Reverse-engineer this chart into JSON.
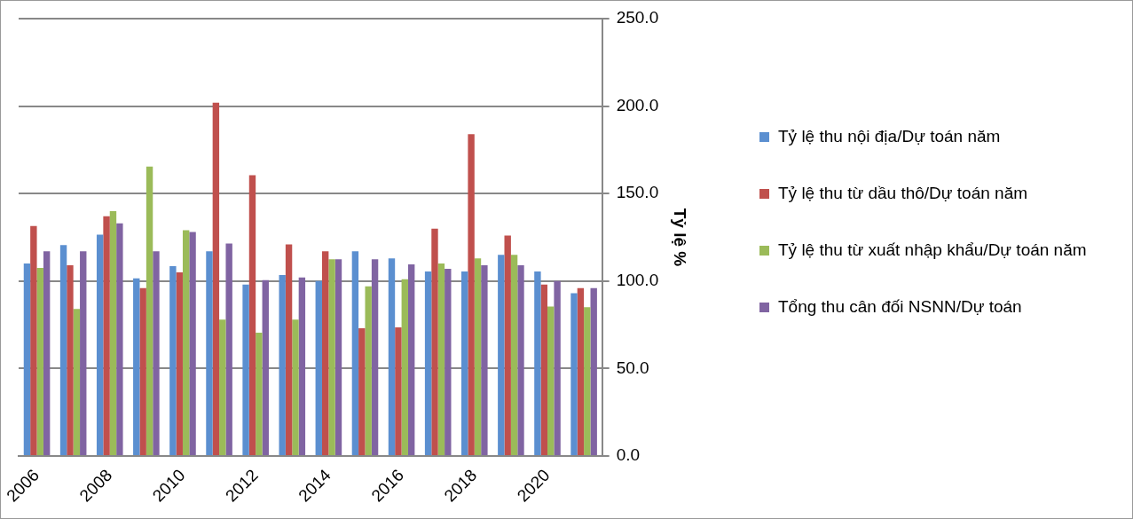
{
  "chart_data": {
    "type": "bar",
    "ylabel": "Tỷ lệ %",
    "categories": [
      "2006",
      null,
      "2008",
      null,
      "2010",
      null,
      "2012",
      null,
      "2014",
      null,
      "2016",
      null,
      "2018",
      null,
      "2020",
      null
    ],
    "series": [
      {
        "name": "Tỷ lệ thu nội địa/Dự toán năm",
        "color": "#5b8fd0",
        "values": [
          110,
          120.5,
          126.5,
          101.5,
          108.5,
          117,
          98,
          103.5,
          100,
          117,
          113,
          105.5,
          105.5,
          115,
          105.5,
          93
        ]
      },
      {
        "name": "Tỷ lệ thu từ dầu thô/Dự toán năm",
        "color": "#c0504d",
        "values": [
          131.5,
          109,
          137,
          96,
          105,
          202,
          160.5,
          121,
          117,
          73,
          73.5,
          130,
          184,
          126,
          98,
          96
        ]
      },
      {
        "name": "Tỷ lệ thu từ xuất nhập khẩu/Dự toán năm",
        "color": "#9bbb59",
        "values": [
          107.5,
          84,
          140,
          165.5,
          129,
          78,
          70.5,
          78,
          112.5,
          97,
          101,
          110,
          113,
          115,
          85.5,
          85
        ]
      },
      {
        "name": "Tổng thu cân đối NSNN/Dự toán",
        "color": "#8064a2",
        "values": [
          117,
          117,
          133,
          117,
          128,
          121.5,
          100.5,
          102,
          112.5,
          112.5,
          109.5,
          107,
          109,
          109,
          100,
          96
        ]
      }
    ],
    "ylim": [
      0,
      250
    ],
    "yticks": [
      {
        "value": 0,
        "label": "0.0"
      },
      {
        "value": 50,
        "label": "50.0"
      },
      {
        "value": 100,
        "label": "100.0"
      },
      {
        "value": 150,
        "label": "150.0"
      },
      {
        "value": 200,
        "label": "200.0"
      },
      {
        "value": 250,
        "label": "250.0"
      }
    ],
    "grid": "y",
    "legend": "right"
  }
}
